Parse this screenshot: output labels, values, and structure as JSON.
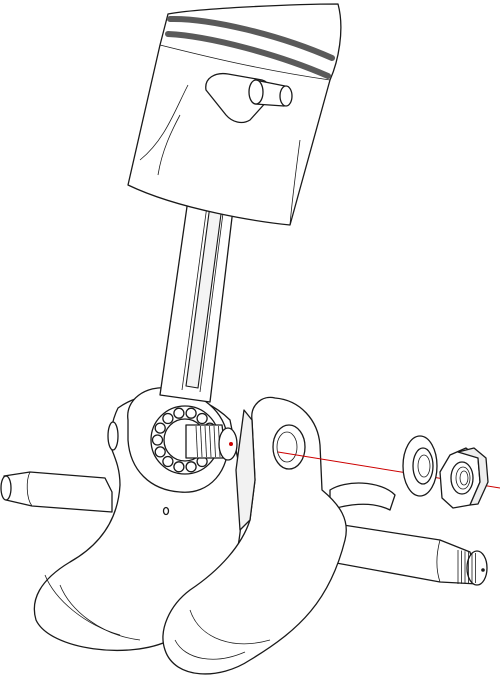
{
  "colors": {
    "line": "#1a1a1a",
    "fill": "#ffffff",
    "shade": "#e6e6e6",
    "piston_ring": "#5a5a5a",
    "axis_line": "#cc0000"
  },
  "parts": {
    "piston": "piston",
    "piston_rings": "piston-rings",
    "wrist_pin": "wrist-pin",
    "connecting_rod": "connecting-rod",
    "needle_bearing": "needle-bearing",
    "crank_pin": "crank-pin",
    "crank_web_left": "crank-web-left",
    "crank_web_right": "crank-web-right",
    "shaft_left": "shaft-left",
    "shaft_right": "shaft-right",
    "washer": "washer",
    "nut": "hex-nut",
    "assembly_axis": "assembly-axis-line"
  }
}
